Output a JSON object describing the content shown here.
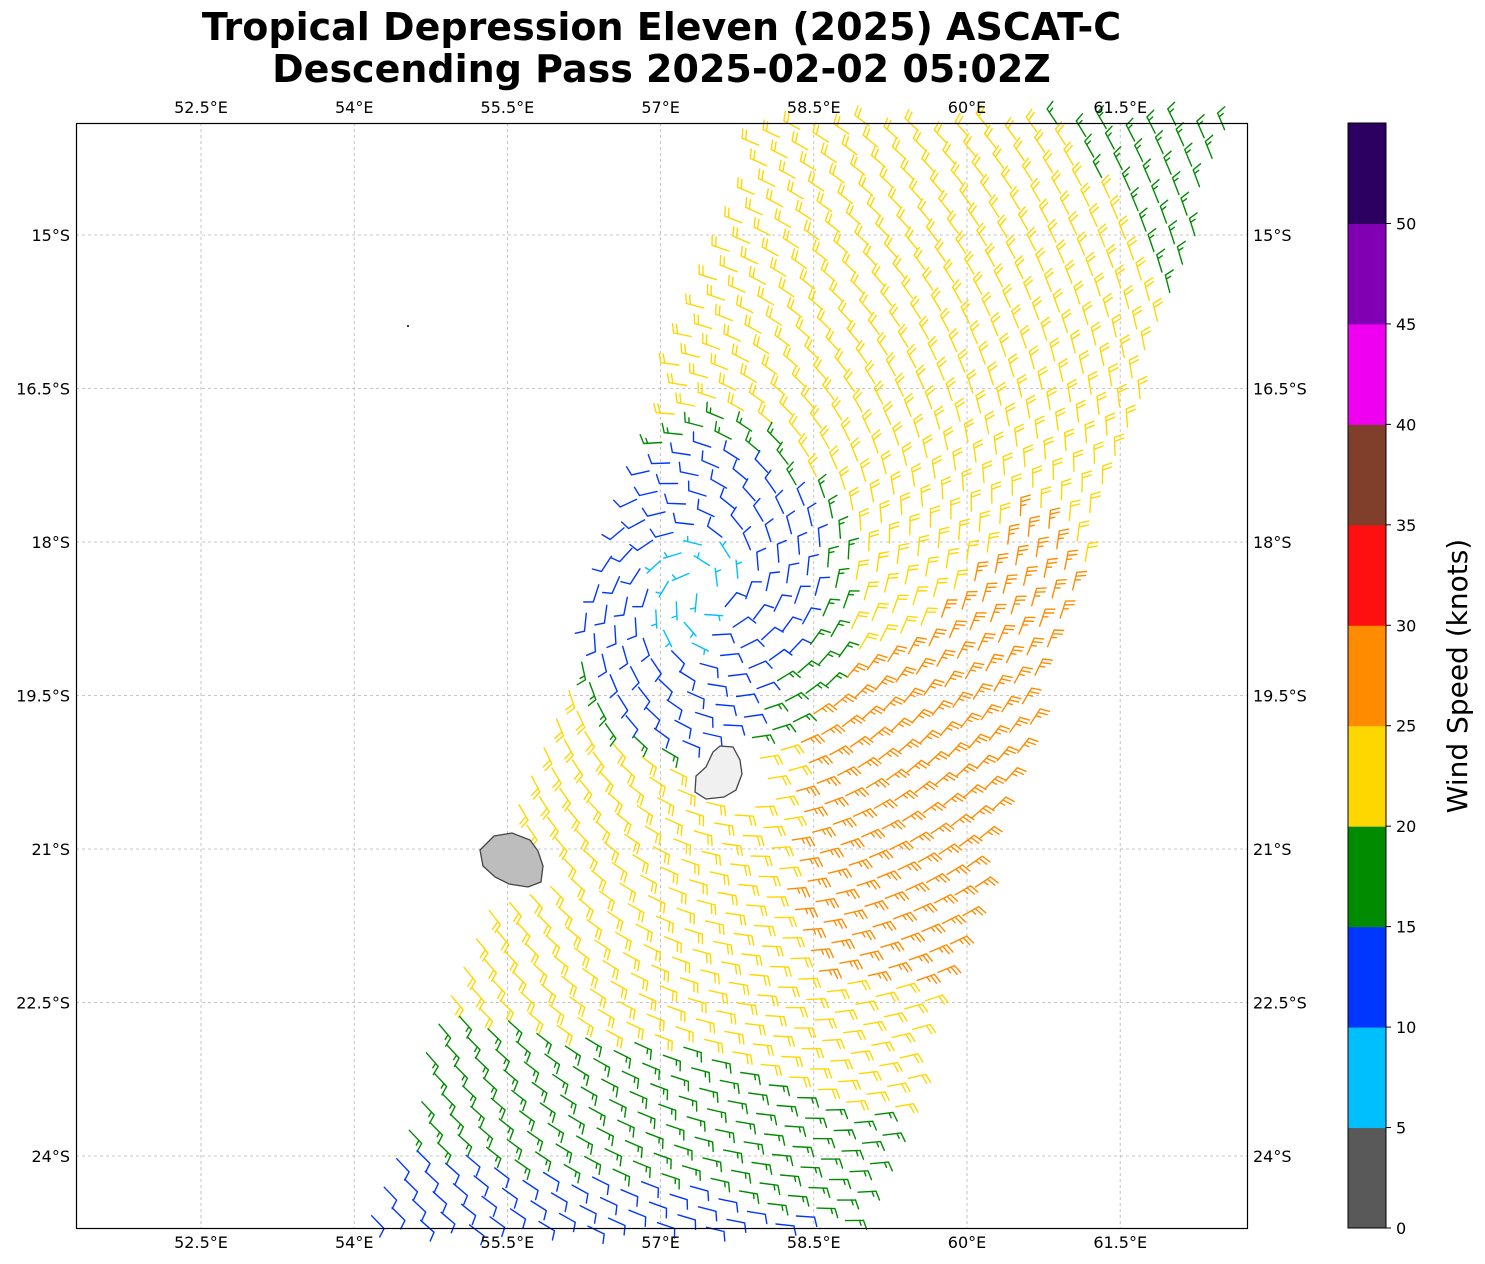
{
  "title": {
    "line1": "Tropical Depression Eleven (2025) ASCAT-C",
    "line2": "Descending Pass 2025-02-02 05:02Z"
  },
  "map": {
    "lon_range": [
      51.28,
      62.77
    ],
    "lat_range": [
      -25.25,
      -14.43
    ],
    "lon_ticks": [
      "52.5°E",
      "54°E",
      "55.5°E",
      "57°E",
      "58.5°E",
      "60°E",
      "61.5°E"
    ],
    "lat_ticks": [
      "15°S",
      "16.5°S",
      "18°S",
      "19.5°S",
      "21°S",
      "22.5°S",
      "24°S"
    ],
    "gridlines": true,
    "islands": [
      "Mauritius",
      "Réunion"
    ],
    "storm_center": {
      "lon": 57.4,
      "lat": -18.5
    }
  },
  "colorbar": {
    "label": "Wind Speed (knots)",
    "ticks": [
      "0",
      "5",
      "10",
      "15",
      "20",
      "25",
      "30",
      "35",
      "40",
      "45",
      "50"
    ],
    "colors": [
      "#595959",
      "#00bfff",
      "#0037ff",
      "#008b00",
      "#ffd700",
      "#ff8c00",
      "#ff1010",
      "#7f3f2a",
      "#f000f0",
      "#8200b4",
      "#2b0060"
    ]
  },
  "chart_data": {
    "type": "wind barb swath",
    "title": "Tropical Depression Eleven (2025) ASCAT-C Descending Pass 2025-02-02 05:02Z",
    "units": "knots",
    "speed_bins_kt": [
      0,
      5,
      10,
      15,
      20,
      25,
      30,
      35,
      40,
      45,
      50,
      55
    ],
    "circulation": "clockwise (southern hemisphere)",
    "center_lon": 57.4,
    "center_lat": -18.5,
    "max_wind_kt_estimated": 27
  }
}
